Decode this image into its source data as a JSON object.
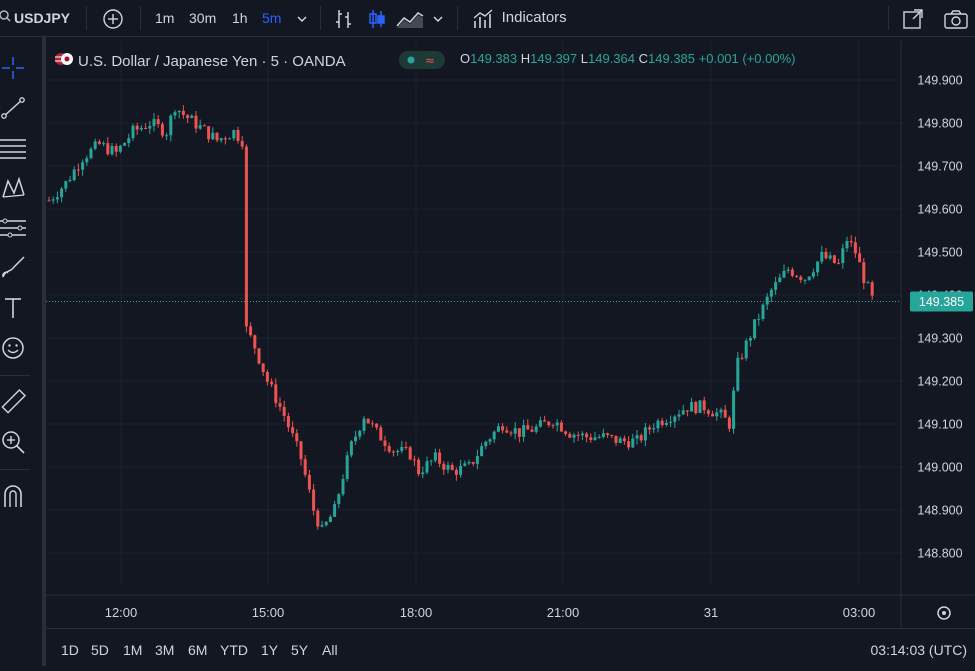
{
  "toolbar": {
    "symbol": "USDJPY",
    "timeframes": [
      {
        "label": "1m",
        "active": false
      },
      {
        "label": "30m",
        "active": false
      },
      {
        "label": "1h",
        "active": false
      },
      {
        "label": "5m",
        "active": true
      }
    ],
    "indicators_label": "Indicators"
  },
  "legend": {
    "title": "U.S. Dollar / Japanese Yen · 5 · OANDA",
    "o_key": "O",
    "o_val": "149.383",
    "h_key": "H",
    "h_val": "149.397",
    "l_key": "L",
    "l_val": "149.364",
    "c_key": "C",
    "c_val": "149.385",
    "change": "+0.001 (+0.00%)"
  },
  "chart_data": {
    "type": "candlestick",
    "symbol": "USDJPY",
    "interval": "5",
    "source": "OANDA",
    "y_ticks": [
      "149.900",
      "149.800",
      "149.700",
      "149.600",
      "149.500",
      "149.400",
      "149.300",
      "149.200",
      "149.100",
      "149.000",
      "148.900",
      "148.800"
    ],
    "x_ticks": [
      "12:00",
      "15:00",
      "18:00",
      "21:00",
      "31",
      "03:00"
    ],
    "ylim": [
      148.72,
      149.95
    ],
    "last_price": 149.385,
    "last_price_label": "149.385",
    "up_color": "#26a69a",
    "down_color": "#ef5350",
    "path_points": [
      [
        0,
        149.62
      ],
      [
        4,
        149.66
      ],
      [
        8,
        149.72
      ],
      [
        12,
        149.75
      ],
      [
        16,
        149.73
      ],
      [
        20,
        149.78
      ],
      [
        24,
        149.8
      ],
      [
        28,
        149.78
      ],
      [
        30,
        149.84
      ],
      [
        32,
        149.82
      ],
      [
        36,
        149.79
      ],
      [
        40,
        149.76
      ],
      [
        44,
        149.78
      ],
      [
        46,
        149.76
      ],
      [
        47,
        149.32
      ],
      [
        49,
        149.28
      ],
      [
        52,
        149.2
      ],
      [
        56,
        149.12
      ],
      [
        60,
        149.02
      ],
      [
        63,
        148.9
      ],
      [
        65,
        148.85
      ],
      [
        68,
        148.9
      ],
      [
        70,
        148.98
      ],
      [
        72,
        149.05
      ],
      [
        75,
        149.12
      ],
      [
        78,
        149.08
      ],
      [
        82,
        149.04
      ],
      [
        86,
        149.03
      ],
      [
        88,
        148.99
      ],
      [
        92,
        149.02
      ],
      [
        96,
        148.99
      ],
      [
        100,
        149.0
      ],
      [
        104,
        149.06
      ],
      [
        108,
        149.1
      ],
      [
        112,
        149.08
      ],
      [
        116,
        149.09
      ],
      [
        120,
        149.11
      ],
      [
        124,
        149.08
      ],
      [
        128,
        149.07
      ],
      [
        132,
        149.07
      ],
      [
        136,
        149.06
      ],
      [
        140,
        149.06
      ],
      [
        144,
        149.1
      ],
      [
        148,
        149.12
      ],
      [
        152,
        149.14
      ],
      [
        156,
        149.14
      ],
      [
        160,
        149.12
      ],
      [
        162,
        149.1
      ],
      [
        164,
        149.24
      ],
      [
        168,
        149.33
      ],
      [
        172,
        149.41
      ],
      [
        176,
        149.46
      ],
      [
        180,
        149.44
      ],
      [
        184,
        149.49
      ],
      [
        188,
        149.47
      ],
      [
        190,
        149.53
      ],
      [
        192,
        149.5
      ],
      [
        194,
        149.44
      ],
      [
        196,
        149.39
      ]
    ]
  },
  "bottom_bar": {
    "ranges": [
      "1D",
      "5D",
      "1M",
      "3M",
      "6M",
      "YTD",
      "1Y",
      "5Y",
      "All"
    ],
    "clock": "03:14:03 (UTC)"
  },
  "icons": [
    "search-icon",
    "add-symbol-icon",
    "chevron-down-icon",
    "bar-chart-icon",
    "candle-chart-icon",
    "area-chart-icon",
    "indicators-icon",
    "fullscreen-icon",
    "camera-icon",
    "crosshair-icon",
    "trend-line-icon",
    "fib-icon",
    "pattern-icon",
    "forecast-icon",
    "brush-icon",
    "text-icon",
    "emoji-icon",
    "ruler-icon",
    "zoom-icon",
    "magnet-icon",
    "settings-icon",
    "flag-icon"
  ]
}
